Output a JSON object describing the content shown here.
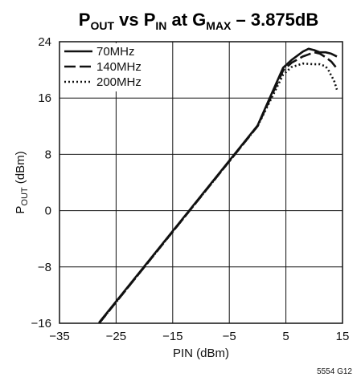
{
  "chart_data": {
    "type": "line",
    "title": {
      "p1": "P",
      "p1_sub": "OUT",
      "p2": " vs P",
      "p2_sub": "IN",
      "p3": " at G",
      "p3_sub": "MAX",
      "p4": " – 3.875dB"
    },
    "xlabel": "PIN (dBm)",
    "ylabel": {
      "main": "P",
      "sub": "OUT",
      "rest": " (dBm)"
    },
    "xlim": [
      -35,
      15
    ],
    "ylim": [
      -16,
      24
    ],
    "xticks": [
      -35,
      -25,
      -15,
      -5,
      5,
      15
    ],
    "yticks": [
      -16,
      -8,
      0,
      8,
      16,
      24
    ],
    "grid": true,
    "legend_position": "top-left",
    "series": [
      {
        "name": "70MHz",
        "dash": "solid",
        "x": [
          -28,
          -20,
          -10,
          0,
          4.5,
          6,
          8,
          9,
          10,
          11,
          12,
          13,
          14
        ],
        "y": [
          -15.9,
          -7.9,
          2.1,
          12.1,
          20.3,
          21.4,
          22.6,
          23.0,
          22.8,
          22.5,
          22.5,
          22.3,
          21.9
        ]
      },
      {
        "name": "140MHz",
        "dash": "dashed",
        "x": [
          -28,
          -20,
          -10,
          0,
          4.5,
          6,
          8,
          9,
          10,
          11,
          12,
          13,
          14
        ],
        "y": [
          -16.0,
          -8.0,
          2.0,
          12.0,
          19.9,
          21.0,
          21.9,
          22.2,
          22.5,
          22.3,
          21.8,
          21.2,
          20.2
        ]
      },
      {
        "name": "200MHz",
        "dash": "dotted",
        "x": [
          -28,
          -20,
          -10,
          0,
          4.5,
          6,
          8,
          10,
          11,
          12,
          12.5,
          13,
          13.5,
          14
        ],
        "y": [
          -16.0,
          -8.0,
          2.0,
          12.0,
          19.3,
          20.4,
          20.9,
          20.8,
          20.8,
          20.5,
          20.0,
          19.2,
          18.5,
          17.2
        ]
      }
    ],
    "note": "5554 G12"
  }
}
